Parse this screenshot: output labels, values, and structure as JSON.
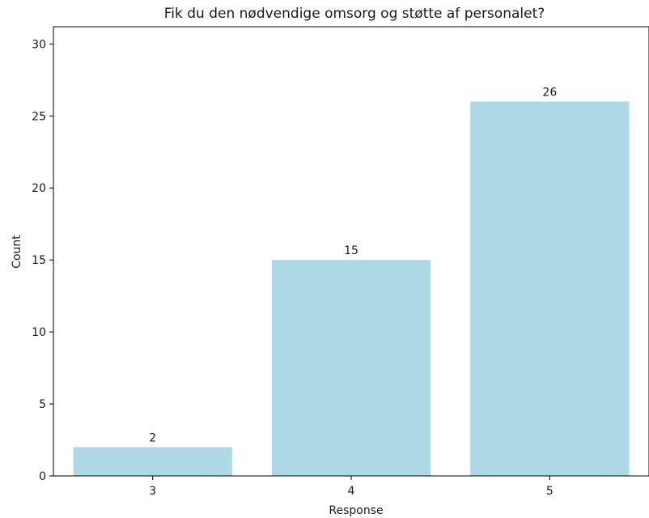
{
  "chart_data": {
    "type": "bar",
    "title": "Fik du den nødvendige omsorg og støtte af personalet?",
    "xlabel": "Response",
    "ylabel": "Count",
    "categories": [
      "3",
      "4",
      "5"
    ],
    "values": [
      2,
      15,
      26
    ],
    "data_labels": [
      "2",
      "15",
      "26"
    ],
    "ylim": [
      0,
      31.2
    ],
    "yticks": [
      0,
      5,
      10,
      15,
      20,
      25,
      30
    ],
    "bar_color": "#add8e6",
    "grid": false,
    "legend": "none"
  }
}
